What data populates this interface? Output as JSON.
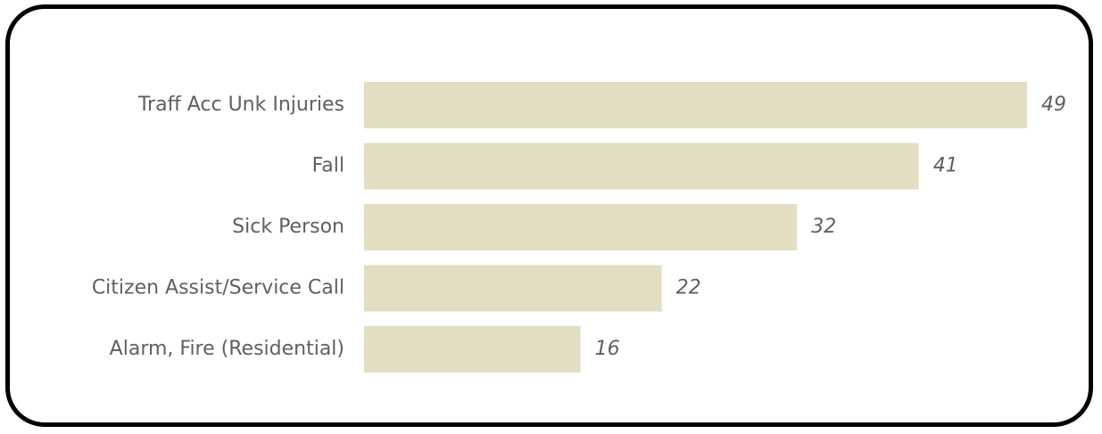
{
  "chart_data": {
    "type": "bar",
    "orientation": "horizontal",
    "title": "",
    "xlabel": "",
    "ylabel": "",
    "categories": [
      "Traff Acc Unk Injuries",
      "Fall",
      "Sick Person",
      "Citizen Assist/Service Call",
      "Alarm, Fire (Residential)"
    ],
    "values": [
      49,
      41,
      32,
      22,
      16
    ],
    "xlim": [
      0,
      49
    ],
    "grid": false,
    "legend": "none",
    "data_labels": true,
    "bar_color": "#e3dec1",
    "label_color": "#606060"
  }
}
